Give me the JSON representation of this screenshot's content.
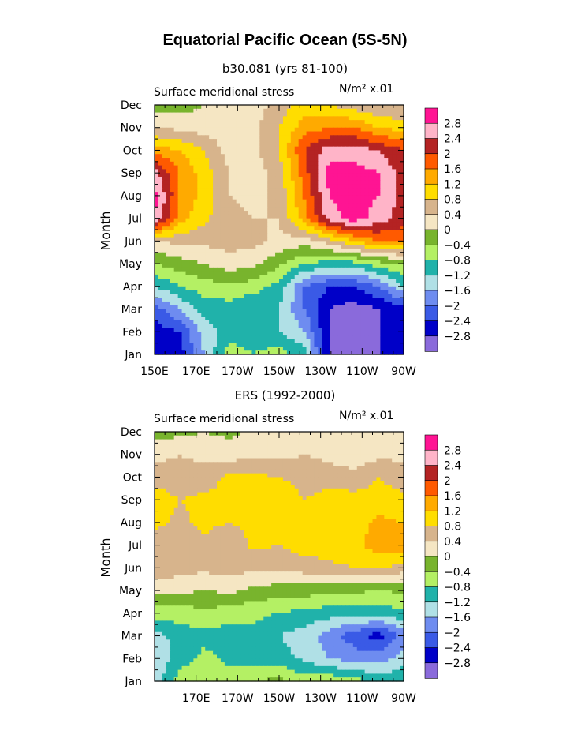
{
  "title": "Equatorial Pacific Ocean (5S-5N)",
  "colors": {
    "levels": [
      "#8a6adb",
      "#0000c8",
      "#3a5ae6",
      "#6e8cf0",
      "#b0e0e6",
      "#20b2aa",
      "#b4f064",
      "#78b42d",
      "#f5e6c3",
      "#d7b48c",
      "#ffdd00",
      "#ffaa00",
      "#ff5a00",
      "#b42323",
      "#ffb4c8",
      "#ff1493"
    ]
  },
  "chart_data": [
    {
      "type": "heatmap",
      "subtitle": "b30.081 (yrs 81-100)",
      "left_label": "Surface meridional stress",
      "right_label": "N/m² x.01",
      "ylabel": "Month",
      "x_ticks": [
        "150E",
        "170E",
        "170W",
        "150W",
        "130W",
        "110W",
        "90W"
      ],
      "y_ticks": [
        "Jan",
        "Feb",
        "Mar",
        "Apr",
        "May",
        "Jun",
        "Jul",
        "Aug",
        "Sep",
        "Oct",
        "Nov",
        "Dec"
      ],
      "x_range": [
        150,
        270
      ],
      "colorbar_labels": [
        "2.8",
        "2.4",
        "2",
        "1.6",
        "1.2",
        "0.8",
        "0.4",
        "0",
        "-0.4",
        "-0.8",
        "-1.2",
        "-1.6",
        "-2",
        "-2.4",
        "-2.8"
      ],
      "x": [
        150,
        162,
        174,
        186,
        198,
        210,
        222,
        234,
        246,
        258,
        270
      ],
      "months": [
        1,
        2,
        3,
        4,
        5,
        6,
        7,
        8,
        9,
        10,
        11,
        12
      ],
      "z": [
        [
          -2.8,
          -2.6,
          -1.6,
          -0.6,
          -0.8,
          -0.6,
          -1.0,
          -2.8,
          -2.8,
          -2.8,
          -2.6
        ],
        [
          -2.6,
          -2.4,
          -1.4,
          -1.0,
          -1.0,
          -1.2,
          -1.6,
          -2.8,
          -3.0,
          -2.8,
          -2.6
        ],
        [
          -2.2,
          -1.6,
          -1.0,
          -1.0,
          -1.2,
          -1.2,
          -2.0,
          -2.8,
          -3.0,
          -2.8,
          -2.6
        ],
        [
          -1.2,
          -0.8,
          -0.6,
          -0.5,
          -0.6,
          -1.0,
          -2.0,
          -2.4,
          -2.4,
          -2.0,
          -1.2
        ],
        [
          -0.4,
          -0.2,
          0.0,
          0.2,
          0.1,
          -0.3,
          -0.8,
          -1.0,
          -1.0,
          -0.6,
          -0.4
        ],
        [
          0.4,
          0.5,
          0.5,
          0.6,
          0.5,
          0.3,
          0.2,
          0.6,
          1.2,
          1.6,
          1.6
        ],
        [
          2.8,
          1.4,
          0.9,
          0.5,
          0.4,
          0.4,
          1.4,
          2.6,
          3.0,
          2.6,
          2.2
        ],
        [
          3.0,
          1.6,
          1.0,
          0.4,
          0.3,
          0.5,
          1.6,
          2.8,
          3.0,
          2.8,
          2.2
        ],
        [
          2.6,
          1.6,
          1.0,
          0.4,
          0.2,
          0.6,
          1.8,
          3.0,
          3.0,
          2.8,
          2.2
        ],
        [
          1.4,
          1.2,
          0.8,
          0.2,
          0.3,
          0.8,
          2.0,
          2.6,
          2.6,
          2.4,
          2.0
        ],
        [
          0.4,
          0.3,
          0.2,
          0.2,
          0.3,
          0.8,
          1.4,
          1.6,
          1.6,
          1.2,
          1.0
        ],
        [
          -0.2,
          -0.2,
          0.0,
          0.2,
          0.2,
          0.6,
          1.0,
          0.8,
          0.6,
          0.4,
          0.4
        ]
      ]
    },
    {
      "type": "heatmap",
      "subtitle": "ERS (1992-2000)",
      "left_label": "Surface meridional stress",
      "right_label": "N/m² x.01",
      "ylabel": "Month",
      "x_ticks": [
        "170E",
        "170W",
        "150W",
        "130W",
        "110W",
        "90W"
      ],
      "y_ticks": [
        "Jan",
        "Feb",
        "Mar",
        "Apr",
        "May",
        "Jun",
        "Jul",
        "Aug",
        "Sep",
        "Oct",
        "Nov",
        "Dec"
      ],
      "x_range": [
        150,
        270
      ],
      "colorbar_labels": [
        "2.8",
        "2.4",
        "2",
        "1.6",
        "1.2",
        "0.8",
        "0.4",
        "0",
        "-0.4",
        "-0.8",
        "-1.2",
        "-1.6",
        "-2",
        "-2.4",
        "-2.8"
      ],
      "x": [
        150,
        162,
        174,
        186,
        198,
        210,
        222,
        234,
        246,
        258,
        270
      ],
      "months": [
        1,
        2,
        3,
        4,
        5,
        6,
        7,
        8,
        9,
        10,
        11,
        12
      ],
      "z": [
        [
          -1.4,
          -0.6,
          -0.5,
          -0.6,
          -0.4,
          -0.3,
          -0.6,
          -0.5,
          -0.6,
          -1.0,
          -0.8
        ],
        [
          -1.6,
          -1.0,
          -0.7,
          -0.9,
          -1.0,
          -1.0,
          -1.3,
          -1.6,
          -1.8,
          -1.8,
          -1.4
        ],
        [
          -1.4,
          -1.0,
          -0.9,
          -1.0,
          -0.9,
          -1.2,
          -1.4,
          -1.8,
          -2.2,
          -2.6,
          -1.8
        ],
        [
          -0.6,
          -0.6,
          -0.5,
          -0.6,
          -0.7,
          -0.8,
          -0.9,
          -1.0,
          -1.0,
          -1.0,
          -0.9
        ],
        [
          0.2,
          0.1,
          0.0,
          0.1,
          -0.1,
          -0.2,
          -0.2,
          -0.3,
          -0.3,
          -0.4,
          -0.3
        ],
        [
          0.6,
          0.6,
          0.5,
          0.6,
          0.5,
          0.5,
          0.6,
          0.7,
          0.8,
          0.9,
          0.6
        ],
        [
          0.6,
          0.6,
          0.7,
          0.5,
          0.9,
          0.8,
          1.0,
          1.0,
          1.1,
          1.4,
          1.4
        ],
        [
          0.9,
          0.7,
          0.9,
          0.8,
          0.9,
          1.0,
          1.1,
          1.2,
          1.0,
          1.3,
          1.2
        ],
        [
          1.1,
          0.8,
          0.9,
          0.9,
          1.0,
          1.2,
          0.8,
          1.0,
          1.0,
          1.0,
          0.9
        ],
        [
          0.6,
          0.5,
          0.6,
          0.9,
          0.9,
          0.8,
          0.6,
          0.6,
          0.5,
          0.8,
          0.6
        ],
        [
          0.3,
          0.4,
          0.3,
          0.2,
          0.3,
          0.3,
          0.4,
          0.3,
          0.2,
          0.3,
          0.3
        ],
        [
          -0.2,
          -0.1,
          0.0,
          -0.1,
          0.1,
          0.1,
          0.2,
          0.1,
          0.0,
          0.1,
          0.1
        ]
      ]
    }
  ]
}
